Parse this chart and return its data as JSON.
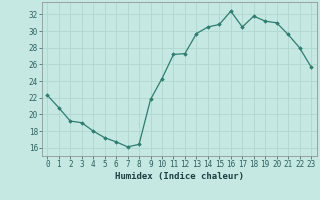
{
  "x": [
    0,
    1,
    2,
    3,
    4,
    5,
    6,
    7,
    8,
    9,
    10,
    11,
    12,
    13,
    14,
    15,
    16,
    17,
    18,
    19,
    20,
    21,
    22,
    23
  ],
  "y": [
    22.3,
    20.8,
    19.2,
    19.0,
    18.0,
    17.2,
    16.7,
    16.1,
    16.4,
    21.8,
    24.3,
    27.2,
    27.3,
    29.7,
    30.5,
    30.8,
    32.4,
    30.5,
    31.8,
    31.2,
    31.0,
    29.6,
    28.0,
    25.7
  ],
  "line_color": "#2e7d6e",
  "marker": "D",
  "markersize": 1.8,
  "linewidth": 0.9,
  "bg_color": "#c6e8e2",
  "grid_color": "#b0d8d0",
  "xlabel": "Humidex (Indice chaleur)",
  "xlabel_fontsize": 6.5,
  "ylabel_ticks": [
    16,
    18,
    20,
    22,
    24,
    26,
    28,
    30,
    32
  ],
  "xtick_labels": [
    "0",
    "1",
    "2",
    "3",
    "4",
    "5",
    "6",
    "7",
    "8",
    "9",
    "10",
    "11",
    "12",
    "13",
    "14",
    "15",
    "16",
    "17",
    "18",
    "19",
    "20",
    "21",
    "22",
    "23"
  ],
  "ylim": [
    15.0,
    33.5
  ],
  "xlim": [
    -0.5,
    23.5
  ],
  "tick_fontsize": 5.5,
  "spine_color": "#888888"
}
